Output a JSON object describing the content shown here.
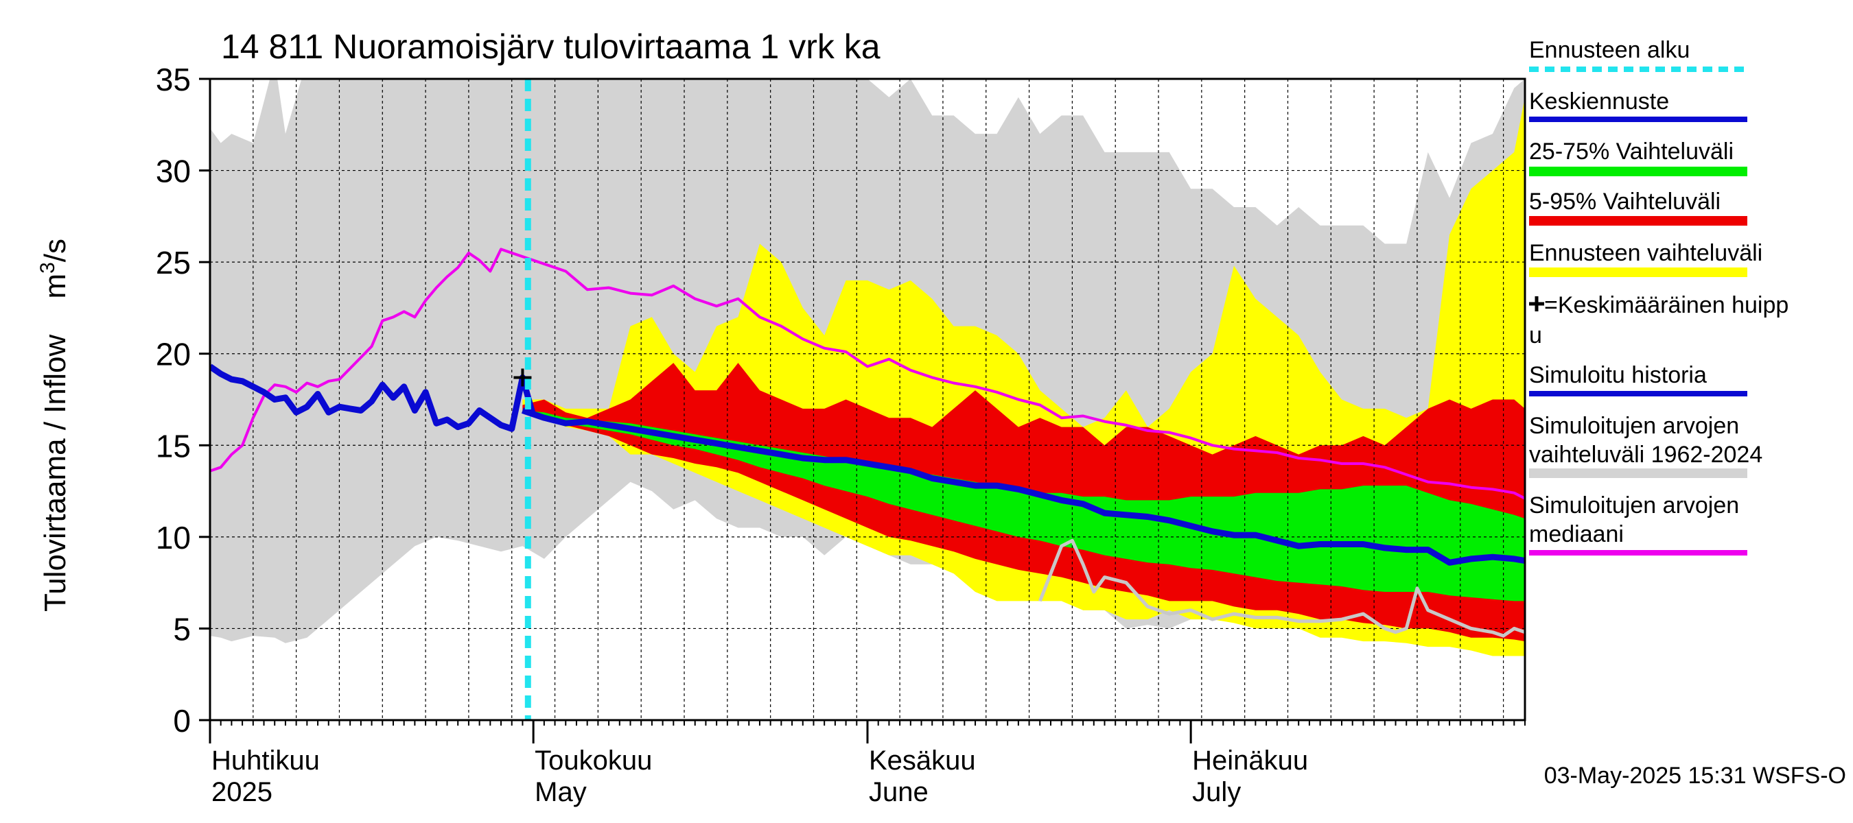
{
  "chart_data": {
    "type": "area",
    "title": "14 811 Nuoramoisjärv tulovirtaama 1 vrk ka",
    "ylabel": "Tulovirtaama / Inflow    m³/s",
    "ylabel_main": "Tulovirtaama / Inflow",
    "ylabel_unit_base": "m",
    "ylabel_unit_sup": "3",
    "ylabel_unit_tail": "/s",
    "ylim": [
      0,
      35
    ],
    "yticks": [
      0,
      5,
      10,
      15,
      20,
      25,
      30,
      35
    ],
    "ytick_labels": [
      "0",
      "5",
      "10",
      "15",
      "20",
      "25",
      "30",
      "35"
    ],
    "x_unit": "day of 2025",
    "xlim": [
      91,
      213
    ],
    "forecast_start": 120.5,
    "months": [
      {
        "start": 91,
        "line1": "Huhtikuu",
        "line2": "2025"
      },
      {
        "start": 121,
        "line1": "Toukokuu",
        "line2": "May"
      },
      {
        "start": 152,
        "line1": "Kesäkuu",
        "line2": "June"
      },
      {
        "start": 182,
        "line1": "Heinäkuu",
        "line2": "July"
      }
    ],
    "grid": true,
    "legend_position": "right",
    "legend": [
      {
        "label": "Ennusteen alku",
        "color": "#22e4ee",
        "style": "dashed"
      },
      {
        "label": "Keskiennuste",
        "color": "#0a0ad2",
        "style": "line"
      },
      {
        "label": "25-75% Vaihteluväli",
        "color": "#00ee00",
        "style": "band"
      },
      {
        "label": "5-95% Vaihteluväli",
        "color": "#ee0000",
        "style": "band"
      },
      {
        "label": "Ennusteen vaihteluväli",
        "color": "#ffff00",
        "style": "band"
      },
      {
        "label": "=Keskimääräinen huippu",
        "color": "#000000",
        "style": "plus"
      },
      {
        "label": "Simuloitu historia",
        "color": "#0a0ad2",
        "style": "line"
      },
      {
        "label": "Simuloitujen arvojen vaihteluväli 1962-2024",
        "color": "#d3d3d3",
        "style": "band"
      },
      {
        "label": "Simuloitujen arvojen mediaani",
        "color": "#ee00ee",
        "style": "line"
      }
    ],
    "colors": {
      "historical_band": "#d3d3d3",
      "forecast_band": "#ffff00",
      "band_5_95": "#ee0000",
      "band_25_75": "#00ee00",
      "mean_forecast": "#0a0ad2",
      "simulated_history": "#0a0ad2",
      "median": "#ee00ee",
      "forecast_start": "#22e4ee",
      "grey_trace": "#c8c8c8"
    },
    "mean_peak": {
      "x": 120,
      "y": 18.7
    },
    "series": {
      "historical_band": {
        "x": [
          91,
          92,
          93,
          95,
          97,
          98,
          100,
          102,
          104,
          106,
          108,
          110,
          112,
          114,
          116,
          118,
          120,
          122,
          124,
          126,
          128,
          130,
          132,
          134,
          136,
          138,
          140,
          142,
          144,
          146,
          148,
          150,
          152,
          154,
          156,
          158,
          160,
          162,
          164,
          166,
          168,
          170,
          172,
          174,
          176,
          178,
          180,
          182,
          184,
          186,
          188,
          190,
          192,
          194,
          196,
          198,
          200,
          202,
          204,
          206,
          208,
          210,
          212,
          213
        ],
        "upper": [
          32.3,
          31.5,
          32,
          31.5,
          36,
          32,
          36,
          36,
          36,
          36,
          36,
          36,
          36,
          36,
          36,
          36,
          36,
          36,
          36,
          36,
          36,
          36,
          36,
          36,
          36,
          36,
          36,
          36,
          36,
          36,
          36,
          35,
          35,
          34,
          35,
          33,
          33,
          32,
          32,
          34,
          32,
          33,
          33,
          31,
          31,
          31,
          31,
          29,
          29,
          28,
          28,
          27,
          28,
          27,
          27,
          27,
          26,
          26,
          31,
          28.5,
          31.5,
          32,
          34.5,
          35
        ],
        "lower": [
          4.6,
          4.5,
          4.3,
          4.6,
          4.5,
          4.2,
          4.5,
          5.5,
          6.5,
          7.5,
          8.5,
          9.5,
          10,
          9.8,
          9.5,
          9.2,
          9.5,
          8.8,
          10,
          11,
          12,
          13,
          12.5,
          11.5,
          12,
          11,
          10.5,
          10.5,
          10,
          10,
          9,
          10,
          9.5,
          9,
          8.5,
          8.5,
          8,
          8,
          7,
          7.5,
          6.5,
          6.8,
          6,
          6,
          5,
          5.2,
          5,
          5.5,
          5.5,
          5.5,
          5.3,
          5.5,
          5.3,
          5,
          5,
          5,
          4.3,
          4.5,
          4.5,
          4.5,
          4.5,
          4.5,
          4.5,
          4.5
        ]
      },
      "forecast_band": {
        "x": [
          120,
          122,
          124,
          126,
          128,
          130,
          132,
          134,
          136,
          138,
          140,
          142,
          144,
          146,
          148,
          150,
          152,
          154,
          156,
          158,
          160,
          162,
          164,
          166,
          168,
          170,
          172,
          174,
          176,
          178,
          180,
          182,
          184,
          186,
          188,
          190,
          192,
          194,
          196,
          198,
          200,
          202,
          204,
          206,
          208,
          210,
          212,
          213
        ],
        "upper": [
          17.5,
          17.5,
          17,
          17,
          17,
          21.5,
          22,
          20,
          19,
          21.5,
          22,
          26,
          25,
          22.5,
          21,
          24,
          24,
          23.5,
          24,
          23,
          21.5,
          21.5,
          21,
          20,
          18,
          17,
          16,
          16.5,
          18,
          16,
          17,
          19,
          20,
          24.8,
          23,
          22,
          21,
          19,
          17.5,
          17,
          17,
          16.5,
          17,
          26.5,
          29,
          30,
          31,
          34
        ],
        "lower": [
          16.8,
          16.5,
          16,
          15.8,
          15.5,
          14.5,
          14.5,
          14,
          13.5,
          13,
          12.5,
          12,
          11.5,
          11,
          10.5,
          10,
          9.5,
          9,
          9,
          8.5,
          8,
          7,
          6.5,
          6.5,
          6.5,
          6.5,
          6,
          6,
          5.5,
          5.5,
          6,
          5.5,
          5.5,
          5.3,
          5,
          5,
          5,
          4.5,
          4.5,
          4.3,
          4.3,
          4.2,
          4,
          4,
          3.8,
          3.5,
          3.5,
          3.5
        ]
      },
      "band_5_95": {
        "x": [
          120,
          122,
          124,
          126,
          128,
          130,
          132,
          134,
          136,
          138,
          140,
          142,
          144,
          146,
          148,
          150,
          152,
          154,
          156,
          158,
          160,
          162,
          164,
          166,
          168,
          170,
          172,
          174,
          176,
          178,
          180,
          182,
          184,
          186,
          188,
          190,
          192,
          194,
          196,
          198,
          200,
          202,
          204,
          206,
          208,
          210,
          212,
          213
        ],
        "upper": [
          17.2,
          17.5,
          16.8,
          16.5,
          17,
          17.5,
          18.5,
          19.5,
          18,
          18,
          19.5,
          18,
          17.5,
          17,
          17,
          17.5,
          17,
          16.5,
          16.5,
          16,
          17,
          18,
          17,
          16,
          16.5,
          16,
          16,
          15,
          16,
          16,
          15.5,
          15,
          14.5,
          15,
          15.5,
          15,
          14.5,
          15,
          15,
          15.5,
          15,
          16,
          17,
          17.5,
          17,
          17.5,
          17.5,
          17
        ],
        "lower": [
          16.8,
          16.5,
          16.1,
          15.8,
          15.5,
          15,
          14.5,
          14.3,
          14,
          13.8,
          13.5,
          13,
          12.5,
          12,
          11.5,
          11,
          10.5,
          10,
          9.8,
          9.5,
          9.2,
          8.8,
          8.5,
          8.2,
          8,
          7.8,
          7.5,
          7.2,
          7,
          6.8,
          6.5,
          6.5,
          6.5,
          6.2,
          6,
          6,
          5.8,
          5.5,
          5.5,
          5.3,
          5.2,
          5,
          5,
          4.8,
          4.5,
          4.5,
          4.4,
          4.3
        ]
      },
      "band_25_75": {
        "x": [
          120,
          122,
          124,
          126,
          128,
          130,
          132,
          134,
          136,
          138,
          140,
          142,
          144,
          146,
          148,
          150,
          152,
          154,
          156,
          158,
          160,
          162,
          164,
          166,
          168,
          170,
          172,
          174,
          176,
          178,
          180,
          182,
          184,
          186,
          188,
          190,
          192,
          194,
          196,
          198,
          200,
          202,
          204,
          206,
          208,
          210,
          212,
          213
        ],
        "upper": [
          16.9,
          16.8,
          16.5,
          16.4,
          16.3,
          16.2,
          16,
          15.8,
          15.6,
          15.4,
          15.2,
          15,
          14.8,
          14.6,
          14.4,
          14.2,
          14,
          13.8,
          13.6,
          13.4,
          13.2,
          13,
          12.8,
          12.6,
          12.4,
          12.4,
          12.2,
          12.2,
          12,
          12,
          12,
          12.2,
          12.2,
          12.2,
          12.4,
          12.4,
          12.4,
          12.6,
          12.6,
          12.8,
          12.8,
          12.8,
          12.4,
          12,
          11.8,
          11.5,
          11.2,
          11
        ],
        "lower": [
          16.8,
          16.6,
          16.2,
          16,
          15.8,
          15.6,
          15.3,
          15,
          14.8,
          14.5,
          14.2,
          13.8,
          13.5,
          13.2,
          12.8,
          12.5,
          12.2,
          11.8,
          11.5,
          11.2,
          10.9,
          10.6,
          10.3,
          10,
          9.8,
          9.5,
          9.3,
          9,
          8.8,
          8.6,
          8.5,
          8.3,
          8.2,
          8,
          7.8,
          7.6,
          7.5,
          7.4,
          7.3,
          7.1,
          7,
          7,
          7,
          6.8,
          6.7,
          6.6,
          6.5,
          6.5
        ]
      },
      "mean_forecast": {
        "x": [
          120,
          122,
          124,
          126,
          128,
          130,
          132,
          134,
          136,
          138,
          140,
          142,
          144,
          146,
          148,
          150,
          152,
          154,
          156,
          158,
          160,
          162,
          164,
          166,
          168,
          170,
          172,
          174,
          176,
          178,
          180,
          182,
          184,
          186,
          188,
          190,
          192,
          194,
          196,
          198,
          200,
          202,
          204,
          206,
          208,
          210,
          212,
          213
        ],
        "y": [
          16.9,
          16.5,
          16.2,
          16.3,
          16.1,
          15.9,
          15.7,
          15.5,
          15.3,
          15.1,
          14.9,
          14.7,
          14.5,
          14.3,
          14.2,
          14.2,
          14,
          13.8,
          13.6,
          13.2,
          13,
          12.8,
          12.8,
          12.6,
          12.3,
          12,
          11.8,
          11.3,
          11.2,
          11.1,
          10.9,
          10.6,
          10.3,
          10.1,
          10.1,
          9.8,
          9.5,
          9.6,
          9.6,
          9.6,
          9.4,
          9.3,
          9.3,
          8.6,
          8.8,
          8.9,
          8.8,
          8.7
        ]
      },
      "simulated_history": {
        "x": [
          91,
          92,
          93,
          94,
          95,
          96,
          97,
          98,
          99,
          100,
          101,
          102,
          103,
          104,
          105,
          106,
          107,
          108,
          109,
          110,
          111,
          112,
          113,
          114,
          115,
          116,
          117,
          118,
          119,
          120,
          121
        ],
        "y": [
          19.3,
          18.9,
          18.6,
          18.5,
          18.2,
          17.9,
          17.5,
          17.6,
          16.8,
          17.1,
          17.8,
          16.8,
          17.1,
          17.0,
          16.9,
          17.4,
          18.3,
          17.6,
          18.2,
          16.9,
          17.9,
          16.2,
          16.4,
          16.0,
          16.2,
          16.9,
          16.5,
          16.1,
          15.9,
          18.7,
          16.6
        ]
      },
      "median": {
        "x": [
          91,
          92,
          93,
          94,
          95,
          96,
          97,
          98,
          99,
          100,
          101,
          102,
          103,
          104,
          105,
          106,
          107,
          108,
          109,
          110,
          111,
          112,
          113,
          114,
          115,
          116,
          117,
          118,
          119,
          120,
          122,
          124,
          126,
          128,
          130,
          132,
          134,
          136,
          138,
          140,
          142,
          144,
          146,
          148,
          150,
          152,
          154,
          156,
          158,
          160,
          162,
          164,
          166,
          168,
          170,
          172,
          174,
          176,
          178,
          180,
          182,
          184,
          186,
          188,
          190,
          192,
          194,
          196,
          198,
          200,
          202,
          204,
          206,
          208,
          210,
          212,
          213
        ],
        "y": [
          13.6,
          13.8,
          14.5,
          15.0,
          16.5,
          17.7,
          18.3,
          18.2,
          17.9,
          18.4,
          18.2,
          18.5,
          18.6,
          19.2,
          19.8,
          20.4,
          21.8,
          22.0,
          22.3,
          22.0,
          22.9,
          23.6,
          24.2,
          24.7,
          25.5,
          25.1,
          24.5,
          25.7,
          25.5,
          25.3,
          24.9,
          24.5,
          23.5,
          23.6,
          23.3,
          23.2,
          23.7,
          23.0,
          22.6,
          23.0,
          22.0,
          21.5,
          20.8,
          20.3,
          20.1,
          19.3,
          19.7,
          19.1,
          18.7,
          18.4,
          18.2,
          17.9,
          17.5,
          17.2,
          16.5,
          16.6,
          16.3,
          16.1,
          15.8,
          15.7,
          15.4,
          15.0,
          14.8,
          14.7,
          14.6,
          14.3,
          14.2,
          14.0,
          14.0,
          13.8,
          13.4,
          13.0,
          12.9,
          12.7,
          12.6,
          12.4,
          12.1
        ]
      },
      "grey_trace": {
        "x": [
          168,
          169,
          170,
          171,
          172,
          173,
          174,
          176,
          178,
          180,
          182,
          184,
          186,
          188,
          190,
          192,
          194,
          196,
          198,
          200,
          201,
          202,
          203,
          204,
          206,
          208,
          210,
          211,
          212,
          213
        ],
        "y": [
          6.5,
          8.0,
          9.5,
          9.8,
          8.5,
          7.0,
          7.8,
          7.5,
          6.2,
          5.8,
          6.0,
          5.5,
          5.8,
          5.6,
          5.6,
          5.4,
          5.4,
          5.5,
          5.8,
          5.0,
          4.8,
          5.0,
          7.2,
          6.0,
          5.5,
          5.0,
          4.8,
          4.6,
          5.0,
          4.8
        ]
      }
    }
  },
  "timestamp": "03-May-2025 15:31 WSFS-O"
}
